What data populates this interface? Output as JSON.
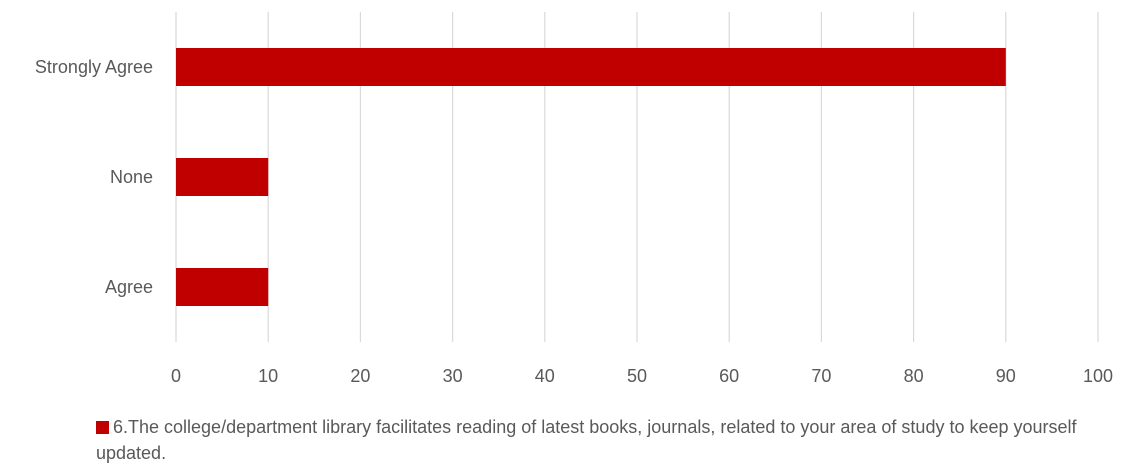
{
  "chart_data": {
    "type": "bar",
    "orientation": "horizontal",
    "categories": [
      "Strongly Agree",
      "None",
      "Agree"
    ],
    "series": [
      {
        "name": "6.The college/department library facilitates reading of latest books, journals, related to your area of study to keep yourself updated.",
        "values": [
          90,
          10,
          10
        ],
        "color": "#C00000"
      }
    ],
    "xlim": [
      0,
      100
    ],
    "xticks": [
      0,
      10,
      20,
      30,
      40,
      50,
      60,
      70,
      80,
      90,
      100
    ],
    "grid": true,
    "legend_position": "bottom",
    "title": "",
    "xlabel": "",
    "ylabel": ""
  }
}
